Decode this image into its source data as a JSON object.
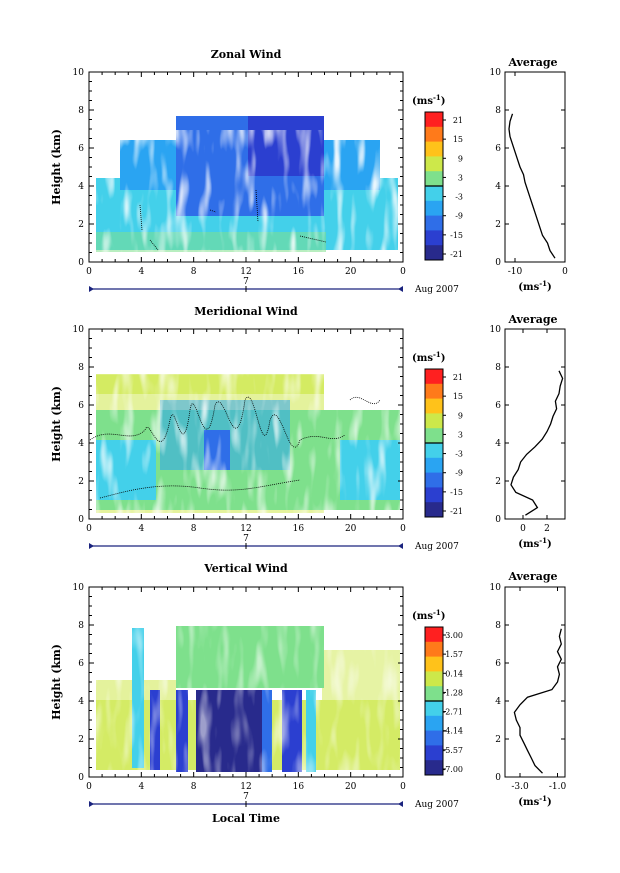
{
  "chart_data": [
    {
      "type": "heatmap",
      "title": "Zonal Wind",
      "ylabel": "Height (km)",
      "xlim": [
        0,
        24
      ],
      "ylim": [
        0,
        10
      ],
      "x_ticks": [
        "0",
        "4",
        "8",
        "12",
        "16",
        "20",
        "0"
      ],
      "y_ticks": [
        "0",
        "2",
        "4",
        "6",
        "8",
        "10"
      ],
      "date_day": "7",
      "date_label": "Aug 2007",
      "colorbar": {
        "unit_label": "(ms",
        "unit_exp": "-1",
        "unit_close": ")",
        "tick_labels": [
          "21",
          "15",
          "9",
          "3",
          "-3",
          "-9",
          "-15",
          "-21"
        ],
        "colors": [
          "#ff2020",
          "#ff7a1a",
          "#ffc21a",
          "#cde84a",
          "#7ee08c",
          "#43d0ea",
          "#2aa4f2",
          "#2f6ee8",
          "#2b3fd0",
          "#282a8c"
        ]
      },
      "profile": {
        "title": "Average",
        "xlabel": "(ms",
        "xlabel_exp": "-1",
        "xlabel_close": ")",
        "x_ticks": [
          "-10",
          "0"
        ],
        "xlim": [
          -12,
          0
        ],
        "heights": [
          0.2,
          0.6,
          1.0,
          1.4,
          1.8,
          2.2,
          2.6,
          3.0,
          3.4,
          3.8,
          4.2,
          4.6,
          5.0,
          5.4,
          5.8,
          6.2,
          6.6,
          7.0,
          7.4,
          7.8
        ],
        "values": [
          -2.0,
          -3.0,
          -3.5,
          -4.5,
          -5.0,
          -5.5,
          -6.0,
          -6.5,
          -7.0,
          -7.5,
          -8.0,
          -8.3,
          -9.0,
          -9.5,
          -10.0,
          -10.5,
          -11.0,
          -11.2,
          -11.0,
          -10.5
        ]
      }
    },
    {
      "type": "heatmap",
      "title": "Meridional Wind",
      "ylabel": "Height (km)",
      "xlim": [
        0,
        24
      ],
      "ylim": [
        0,
        10
      ],
      "x_ticks": [
        "0",
        "4",
        "8",
        "12",
        "16",
        "20",
        "0"
      ],
      "y_ticks": [
        "0",
        "2",
        "4",
        "6",
        "8",
        "10"
      ],
      "date_day": "7",
      "date_label": "Aug 2007",
      "colorbar": {
        "unit_label": "(ms",
        "unit_exp": "-1",
        "unit_close": ")",
        "tick_labels": [
          "21",
          "15",
          "9",
          "3",
          "-3",
          "-9",
          "-15",
          "-21"
        ],
        "colors": [
          "#ff2020",
          "#ff7a1a",
          "#ffc21a",
          "#cde84a",
          "#7ee08c",
          "#43d0ea",
          "#2aa4f2",
          "#2f6ee8",
          "#2b3fd0",
          "#282a8c"
        ]
      },
      "profile": {
        "title": "Average",
        "xlabel": "(ms",
        "xlabel_exp": "-1",
        "xlabel_close": ")",
        "x_ticks": [
          "0",
          "2"
        ],
        "xlim": [
          -1.5,
          3.5
        ],
        "heights": [
          0.2,
          0.6,
          1.0,
          1.4,
          1.8,
          2.2,
          2.6,
          3.0,
          3.4,
          3.8,
          4.2,
          4.6,
          5.0,
          5.4,
          5.8,
          6.2,
          6.6,
          7.0,
          7.4,
          7.8
        ],
        "values": [
          0.2,
          1.2,
          0.8,
          -0.6,
          -1.0,
          -0.8,
          -0.4,
          -0.2,
          0.3,
          1.0,
          1.6,
          2.0,
          2.3,
          2.5,
          2.8,
          2.7,
          3.0,
          3.1,
          3.3,
          3.0
        ]
      }
    },
    {
      "type": "heatmap",
      "title": "Vertical Wind",
      "ylabel": "Height (km)",
      "xlabel": "Local Time",
      "xlim": [
        0,
        24
      ],
      "ylim": [
        0,
        10
      ],
      "x_ticks": [
        "0",
        "4",
        "8",
        "12",
        "16",
        "20",
        "0"
      ],
      "y_ticks": [
        "0",
        "2",
        "4",
        "6",
        "8",
        "10"
      ],
      "date_day": "7",
      "date_label": "Aug 2007",
      "colorbar": {
        "unit_label": "(ms",
        "unit_exp": "-1",
        "unit_close": ")",
        "tick_labels": [
          "3.00",
          "1.57",
          "0.14",
          "-1.28",
          "-2.71",
          "-4.14",
          "-5.57",
          "-7.00"
        ],
        "colors": [
          "#ff2020",
          "#ff7a1a",
          "#ffc21a",
          "#cde84a",
          "#7ee08c",
          "#43d0ea",
          "#2aa4f2",
          "#2f6ee8",
          "#2b3fd0",
          "#282a8c"
        ]
      },
      "profile": {
        "title": "Average",
        "xlabel": "(ms",
        "xlabel_exp": "-1",
        "xlabel_close": ")",
        "x_ticks": [
          "-3.0",
          "-1.0"
        ],
        "xlim": [
          -3.8,
          -0.6
        ],
        "heights": [
          0.2,
          0.6,
          1.0,
          1.4,
          1.8,
          2.2,
          2.6,
          3.0,
          3.4,
          3.8,
          4.2,
          4.6,
          5.0,
          5.4,
          5.8,
          6.2,
          6.6,
          7.0,
          7.4,
          7.8
        ],
        "values": [
          -1.8,
          -2.2,
          -2.4,
          -2.6,
          -2.8,
          -3.0,
          -3.0,
          -3.2,
          -3.3,
          -3.0,
          -2.6,
          -1.3,
          -1.0,
          -0.9,
          -1.0,
          -0.8,
          -1.0,
          -0.8,
          -0.9,
          -0.8
        ]
      }
    }
  ]
}
